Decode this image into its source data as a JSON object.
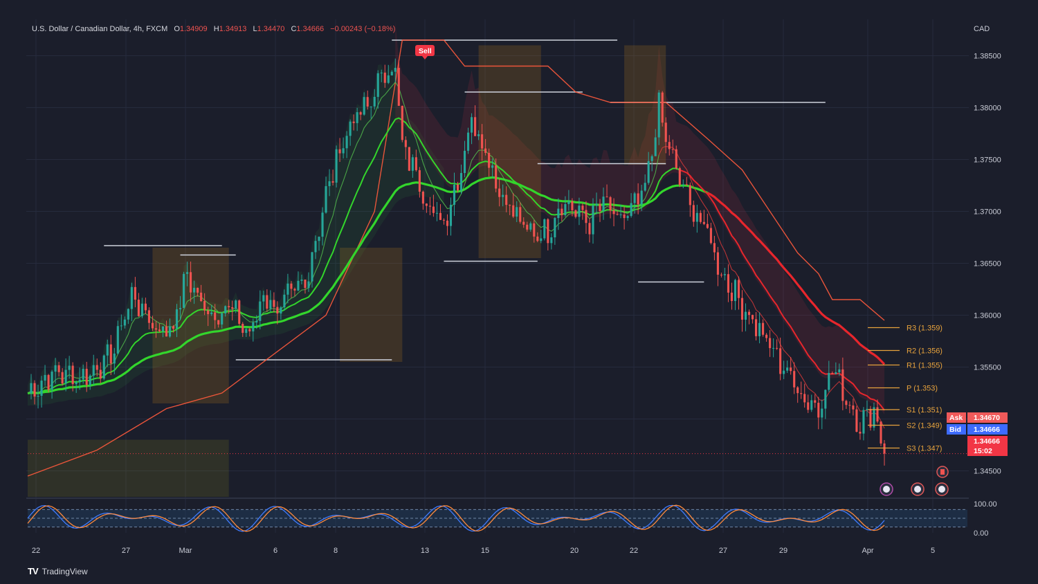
{
  "header": {
    "symbol": "U.S. Dollar / Canadian Dollar, 4h, FXCM",
    "open_label": "O",
    "open": "1.34909",
    "high_label": "H",
    "high": "1.34913",
    "low_label": "L",
    "low": "1.34470",
    "close_label": "C",
    "close": "1.34666",
    "change": "−0.00243 (−0.18%)",
    "currency": "CAD"
  },
  "price_scale": {
    "labels": [
      "1.38500",
      "1.38000",
      "1.37500",
      "1.37000",
      "1.36500",
      "1.36000",
      "1.35500",
      "1.35000",
      "1.34500"
    ]
  },
  "oscillator_scale": {
    "labels": [
      "100.00",
      "0.00"
    ]
  },
  "time_axis": {
    "labels": [
      "22",
      "27",
      "Mar",
      "6",
      "8",
      "13",
      "15",
      "20",
      "22",
      "27",
      "29",
      "Apr",
      "5"
    ]
  },
  "tags": {
    "sell": "Sell",
    "ask_label": "Ask",
    "ask_value": "1.34670",
    "bid_label": "Bid",
    "bid_value": "1.34666",
    "last_value": "1.34666",
    "countdown": "15:02"
  },
  "pivots": [
    {
      "label": "R3 (1.359)",
      "value": 1.3588
    },
    {
      "label": "R2 (1.356)",
      "value": 1.3566
    },
    {
      "label": "R1 (1.355)",
      "value": 1.3552
    },
    {
      "label": "P (1.353)",
      "value": 1.353
    },
    {
      "label": "S1 (1.351)",
      "value": 1.3509
    },
    {
      "label": "S2 (1.349)",
      "value": 1.3494
    },
    {
      "label": "S3 (1.347)",
      "value": 1.3472
    }
  ],
  "brand": {
    "name": "TradingView",
    "logo": "TV"
  },
  "colors": {
    "bull": "#26a69a",
    "bear": "#ef5350",
    "ema_green": "#33d62c",
    "ema_red": "#e8262c",
    "pivot": "#e8a33c",
    "grid": "#262b3d",
    "ask": "#f05a5a",
    "bid": "#3d6bff"
  },
  "chart_data": {
    "type": "candlestick",
    "symbol": "USDCAD",
    "timeframe": "4h",
    "ylim": [
      1.3425,
      1.3885
    ],
    "close_path": [
      [
        0,
        1.3525
      ],
      [
        8,
        1.3545
      ],
      [
        16,
        1.354
      ],
      [
        24,
        1.356
      ],
      [
        30,
        1.362
      ],
      [
        34,
        1.36
      ],
      [
        38,
        1.3585
      ],
      [
        42,
        1.359
      ],
      [
        46,
        1.364
      ],
      [
        50,
        1.361
      ],
      [
        54,
        1.36
      ],
      [
        58,
        1.361
      ],
      [
        64,
        1.358
      ],
      [
        68,
        1.362
      ],
      [
        72,
        1.3605
      ],
      [
        76,
        1.362
      ],
      [
        80,
        1.363
      ],
      [
        86,
        1.3715
      ],
      [
        90,
        1.376
      ],
      [
        94,
        1.379
      ],
      [
        98,
        1.38
      ],
      [
        102,
        1.383
      ],
      [
        106,
        1.384
      ],
      [
        108,
        1.376
      ],
      [
        112,
        1.374
      ],
      [
        116,
        1.37
      ],
      [
        120,
        1.369
      ],
      [
        124,
        1.373
      ],
      [
        126,
        1.376
      ],
      [
        128,
        1.379
      ],
      [
        132,
        1.376
      ],
      [
        136,
        1.372
      ],
      [
        140,
        1.37
      ],
      [
        144,
        1.368
      ],
      [
        150,
        1.368
      ],
      [
        154,
        1.371
      ],
      [
        158,
        1.37
      ],
      [
        162,
        1.369
      ],
      [
        166,
        1.371
      ],
      [
        170,
        1.369
      ],
      [
        174,
        1.37
      ],
      [
        178,
        1.372
      ],
      [
        182,
        1.38
      ],
      [
        184,
        1.377
      ],
      [
        188,
        1.373
      ],
      [
        192,
        1.37
      ],
      [
        196,
        1.368
      ],
      [
        200,
        1.364
      ],
      [
        204,
        1.362
      ],
      [
        208,
        1.36
      ],
      [
        212,
        1.358
      ],
      [
        216,
        1.356
      ],
      [
        220,
        1.354
      ],
      [
        224,
        1.352
      ],
      [
        228,
        1.351
      ],
      [
        232,
        1.355
      ],
      [
        236,
        1.352
      ],
      [
        240,
        1.3495
      ],
      [
        244,
        1.351
      ],
      [
        247,
        1.3467
      ]
    ],
    "bars_count": 248
  }
}
